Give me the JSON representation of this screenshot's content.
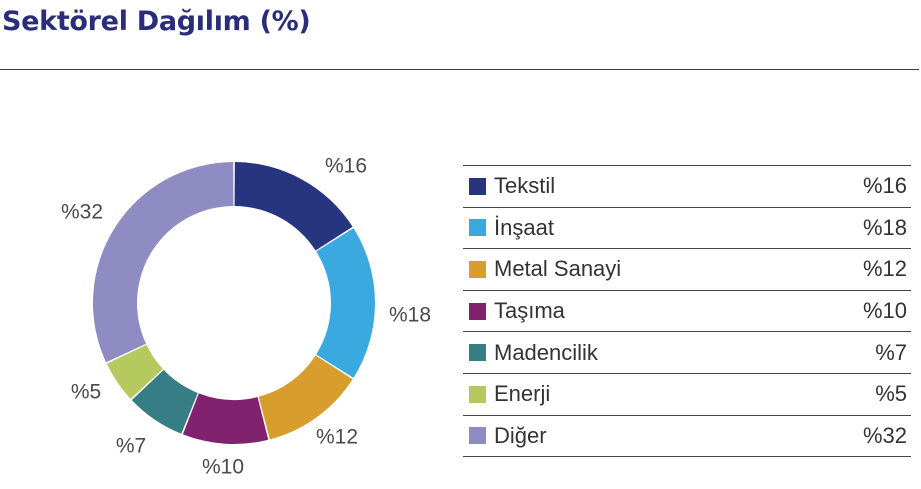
{
  "title": "Sektörel Dağılım (%)",
  "chart_data": {
    "type": "pie",
    "categories": [
      "Tekstil",
      "İnşaat",
      "Metal Sanayi",
      "Taşıma",
      "Madencilik",
      "Enerji",
      "Diğer"
    ],
    "values": [
      16,
      18,
      12,
      10,
      7,
      5,
      32
    ],
    "labels": [
      "%16",
      "%18",
      "%12",
      "%10",
      "%7",
      "%5",
      "%32"
    ],
    "colors": [
      "#27347f",
      "#3aa9e0",
      "#d89d2c",
      "#82226f",
      "#377d86",
      "#b5c95f",
      "#8e8cc2"
    ],
    "donut": true,
    "legend": "right"
  }
}
